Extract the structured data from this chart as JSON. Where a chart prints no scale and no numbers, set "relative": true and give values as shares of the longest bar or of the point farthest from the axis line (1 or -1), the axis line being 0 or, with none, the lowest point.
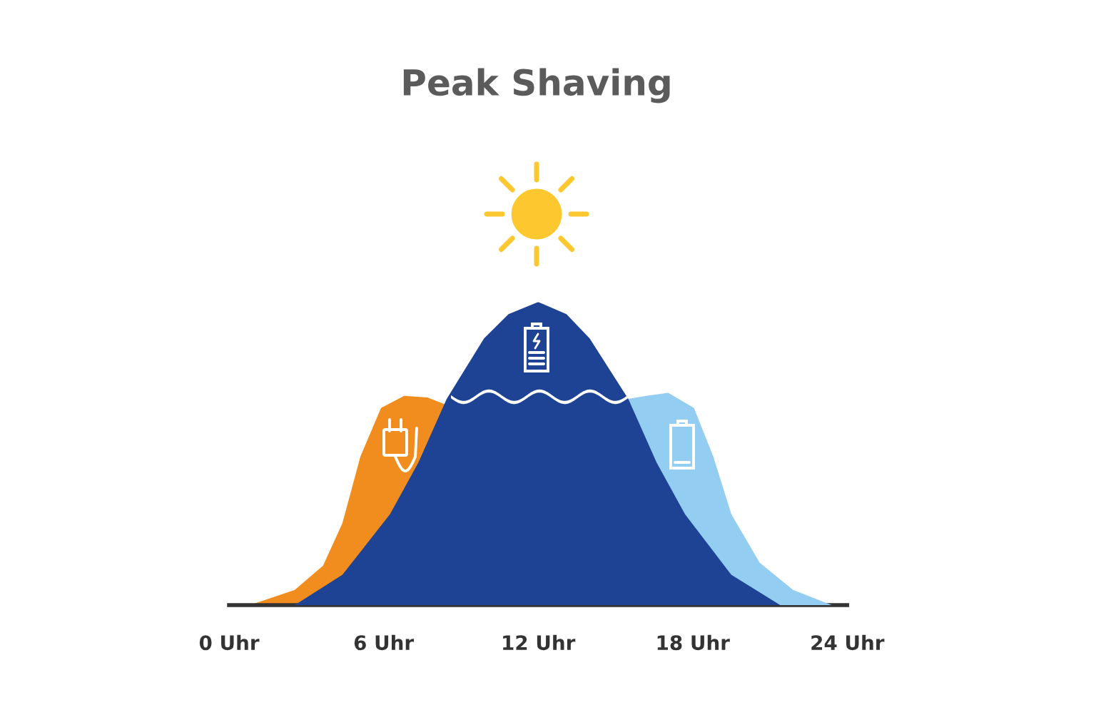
{
  "chart_data": {
    "type": "area",
    "title": "Peak Shaving",
    "relative": true,
    "xlim": [
      0,
      24
    ],
    "xticks": [
      {
        "value": 0,
        "label": "0 Uhr"
      },
      {
        "value": 6,
        "label": "6 Uhr"
      },
      {
        "value": 12,
        "label": "12 Uhr"
      },
      {
        "value": 18,
        "label": "18 Uhr"
      },
      {
        "value": 24,
        "label": "24 Uhr"
      }
    ],
    "grid": false,
    "series": [
      {
        "color": "#f18d1f",
        "x": [
          0.8,
          2.55,
          3.65,
          4.4,
          5.1,
          5.9,
          6.8,
          7.7,
          8.45
        ],
        "values": [
          0,
          0.05,
          0.13,
          0.27,
          0.49,
          0.65,
          0.69,
          0.685,
          0.66
        ]
      },
      {
        "color": "#93cdf1",
        "x": [
          15.5,
          16.2,
          17.05,
          18.05,
          18.8,
          19.5,
          20.6,
          21.9,
          23.4
        ],
        "values": [
          0.68,
          0.69,
          0.7,
          0.65,
          0.49,
          0.3,
          0.14,
          0.05,
          0
        ]
      },
      {
        "color": "#1e4395",
        "x": [
          2.55,
          4.4,
          6.25,
          7.35,
          8.45,
          9.9,
          10.85,
          12,
          13.1,
          14.0,
          15.5,
          16.6,
          17.7,
          19.5,
          21.4
        ],
        "values": [
          0,
          0.1,
          0.3,
          0.47,
          0.68,
          0.88,
          0.96,
          1.0,
          0.96,
          0.88,
          0.68,
          0.47,
          0.3,
          0.1,
          0
        ]
      }
    ]
  }
}
